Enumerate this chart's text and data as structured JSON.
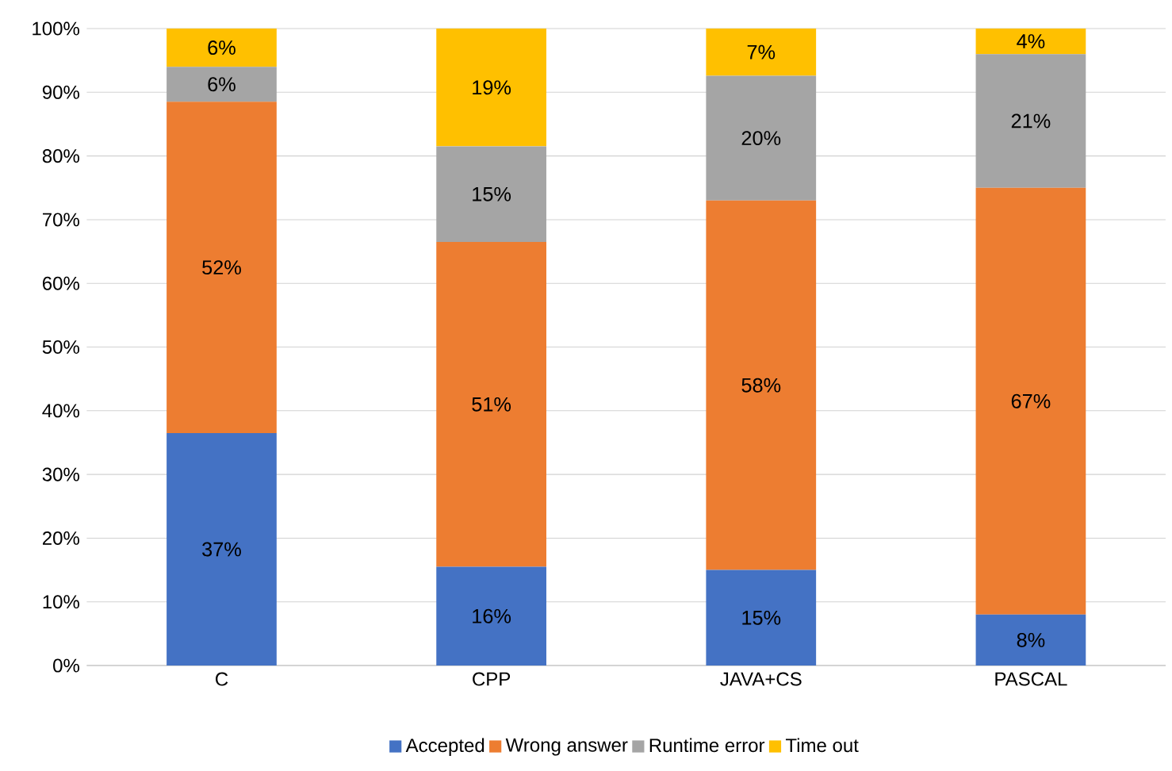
{
  "chart_data": {
    "type": "bar",
    "stacked": true,
    "categories": [
      "C",
      "CPP",
      "JAVA+CS",
      "PASCAL"
    ],
    "series": [
      {
        "name": "Accepted",
        "color": "#4472c4",
        "values": [
          36.5,
          15.5,
          15,
          8
        ],
        "value_labels": [
          "37%",
          "16%",
          "15%",
          "8%"
        ]
      },
      {
        "name": "Wrong answer",
        "color": "#ed7d31",
        "values": [
          52,
          51,
          58,
          67
        ],
        "value_labels": [
          "52%",
          "51%",
          "58%",
          "67%"
        ]
      },
      {
        "name": "Runtime error",
        "color": "#a5a5a5",
        "values": [
          5.5,
          15,
          19.6,
          21
        ],
        "value_labels": [
          "6%",
          "15%",
          "20%",
          "21%"
        ]
      },
      {
        "name": "Time out",
        "color": "#ffc000",
        "values": [
          6,
          18.5,
          7.4,
          4
        ],
        "value_labels": [
          "6%",
          "19%",
          "7%",
          "4%"
        ]
      }
    ],
    "ylim": [
      0,
      100
    ],
    "yticks": [
      {
        "value": 0,
        "label": "0%"
      },
      {
        "value": 10,
        "label": "10%"
      },
      {
        "value": 20,
        "label": "20%"
      },
      {
        "value": 30,
        "label": "30%"
      },
      {
        "value": 40,
        "label": "40%"
      },
      {
        "value": 50,
        "label": "50%"
      },
      {
        "value": 60,
        "label": "60%"
      },
      {
        "value": 70,
        "label": "70%"
      },
      {
        "value": 80,
        "label": "80%"
      },
      {
        "value": 90,
        "label": "90%"
      },
      {
        "value": 100,
        "label": "100%"
      }
    ],
    "grid": "y",
    "legend": "bottom"
  }
}
